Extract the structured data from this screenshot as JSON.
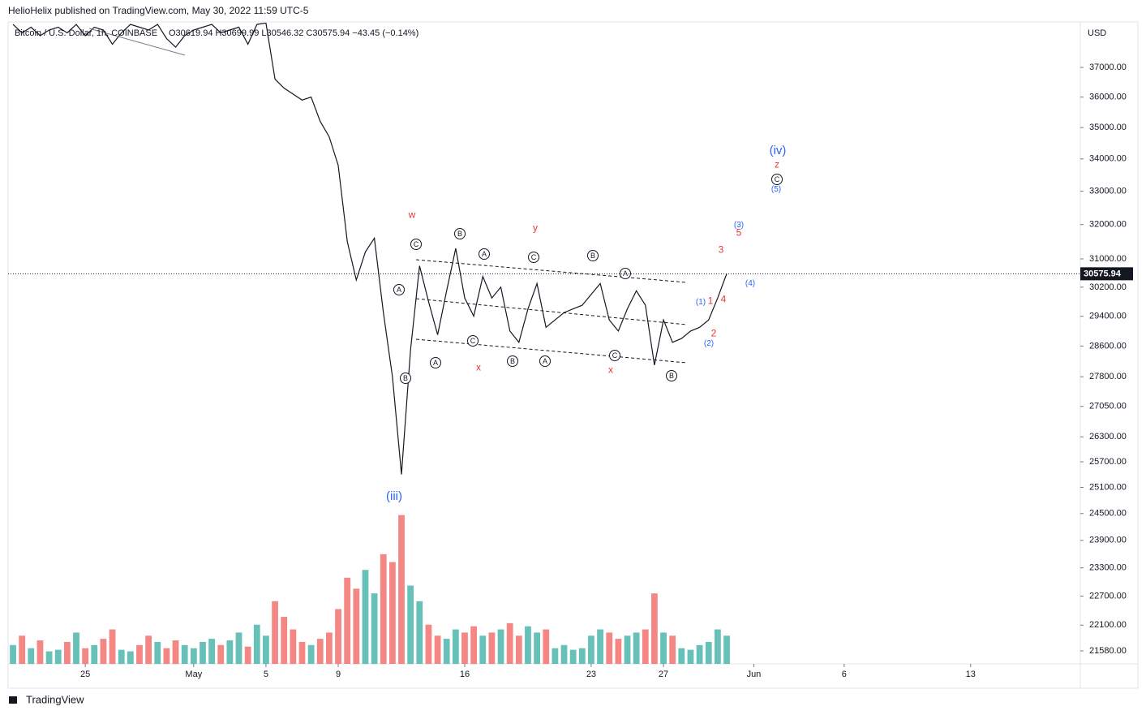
{
  "header": {
    "publisher": "HelioHelix published on TradingView.com, May 30, 2022 11:59 UTC-5",
    "brand": "TradingView"
  },
  "chart_data": {
    "type": "line",
    "title": "Bitcoin / U.S. Dollar, 1h, COINBASE",
    "ohlc": "O30619.94 H30699.99 L30546.32 C30575.94 −43.45 (−0.14%)",
    "currency": "USD",
    "color": "#131722",
    "log_scale": true,
    "x": [
      "2022-04-21 00:00",
      "2022-04-21 12:00",
      "2022-04-22 00:00",
      "2022-04-22 12:00",
      "2022-04-23 00:00",
      "2022-04-23 12:00",
      "2022-04-24 00:00",
      "2022-04-24 12:00",
      "2022-04-25 00:00",
      "2022-04-25 12:00",
      "2022-04-26 00:00",
      "2022-04-26 12:00",
      "2022-04-27 00:00",
      "2022-04-27 12:00",
      "2022-04-28 00:00",
      "2022-04-28 12:00",
      "2022-04-29 00:00",
      "2022-04-29 12:00",
      "2022-04-30 00:00",
      "2022-04-30 12:00",
      "2022-05-01 00:00",
      "2022-05-01 12:00",
      "2022-05-02 00:00",
      "2022-05-02 12:00",
      "2022-05-03 00:00",
      "2022-05-03 12:00",
      "2022-05-04 00:00",
      "2022-05-04 12:00",
      "2022-05-05 00:00",
      "2022-05-05 12:00",
      "2022-05-06 00:00",
      "2022-05-06 12:00",
      "2022-05-07 00:00",
      "2022-05-07 12:00",
      "2022-05-08 00:00",
      "2022-05-08 12:00",
      "2022-05-09 00:00",
      "2022-05-09 12:00",
      "2022-05-10 00:00",
      "2022-05-10 12:00",
      "2022-05-11 00:00",
      "2022-05-11 12:00",
      "2022-05-12 00:00",
      "2022-05-12 12:00",
      "2022-05-13 00:00",
      "2022-05-13 12:00",
      "2022-05-14 00:00",
      "2022-05-14 12:00",
      "2022-05-15 00:00",
      "2022-05-15 12:00",
      "2022-05-16 00:00",
      "2022-05-16 12:00",
      "2022-05-17 00:00",
      "2022-05-17 12:00",
      "2022-05-18 00:00",
      "2022-05-18 12:00",
      "2022-05-19 00:00",
      "2022-05-19 12:00",
      "2022-05-20 00:00",
      "2022-05-20 12:00",
      "2022-05-21 00:00",
      "2022-05-21 12:00",
      "2022-05-22 00:00",
      "2022-05-22 12:00",
      "2022-05-23 00:00",
      "2022-05-23 12:00",
      "2022-05-24 00:00",
      "2022-05-24 12:00",
      "2022-05-25 00:00",
      "2022-05-25 12:00",
      "2022-05-26 00:00",
      "2022-05-26 12:00",
      "2022-05-27 00:00",
      "2022-05-27 12:00",
      "2022-05-28 00:00",
      "2022-05-28 12:00",
      "2022-05-29 00:00",
      "2022-05-29 12:00",
      "2022-05-30 00:00",
      "2022-05-30 12:00"
    ],
    "values": [
      38500,
      38200,
      38400,
      38100,
      38300,
      38400,
      38200,
      38500,
      38100,
      38400,
      38300,
      37800,
      38200,
      38500,
      38400,
      38300,
      38500,
      38000,
      37700,
      38100,
      38300,
      38400,
      38500,
      38200,
      38300,
      38400,
      37800,
      38500,
      38550,
      36600,
      36300,
      36100,
      35900,
      36000,
      35200,
      34700,
      33800,
      31500,
      30400,
      31200,
      31600,
      29500,
      27800,
      25400,
      28500,
      30800,
      29800,
      28900,
      30100,
      31300,
      29900,
      29400,
      30500,
      29900,
      30200,
      29000,
      28700,
      29600,
      30300,
      29100,
      29300,
      29500,
      29600,
      29700,
      30000,
      30300,
      29300,
      29000,
      29600,
      30100,
      29700,
      28100,
      29300,
      28700,
      28800,
      29000,
      29100,
      29300,
      29900,
      30575.94
    ],
    "volume": {
      "values": [
        12,
        18,
        10,
        15,
        8,
        9,
        14,
        20,
        10,
        12,
        16,
        22,
        9,
        8,
        12,
        18,
        14,
        10,
        15,
        12,
        10,
        14,
        16,
        12,
        15,
        20,
        11,
        25,
        18,
        40,
        30,
        22,
        14,
        12,
        16,
        20,
        35,
        55,
        48,
        60,
        45,
        70,
        65,
        95,
        50,
        40,
        25,
        18,
        16,
        22,
        20,
        24,
        18,
        20,
        22,
        26,
        18,
        24,
        20,
        22,
        10,
        12,
        9,
        10,
        18,
        22,
        20,
        16,
        18,
        20,
        22,
        45,
        20,
        18,
        10,
        9,
        12,
        14,
        22,
        18
      ],
      "ylim": [
        0,
        100
      ],
      "up_color": "#26a69a",
      "down_color": "#ef5350"
    },
    "xlim": [
      "2022-04-20 17:30",
      "2022-06-19 01:40"
    ],
    "xticks": [
      {
        "value": "2022-04-25 00:00",
        "label": "25"
      },
      {
        "value": "2022-05-01 00:00",
        "label": "May"
      },
      {
        "value": "2022-05-05 00:00",
        "label": "5"
      },
      {
        "value": "2022-05-09 00:00",
        "label": "9"
      },
      {
        "value": "2022-05-16 00:00",
        "label": "16"
      },
      {
        "value": "2022-05-23 00:00",
        "label": "23"
      },
      {
        "value": "2022-05-27 00:00",
        "label": "27"
      },
      {
        "value": "2022-06-01 00:00",
        "label": "Jun"
      },
      {
        "value": "2022-06-06 00:00",
        "label": "6"
      },
      {
        "value": "2022-06-13 00:00",
        "label": "13"
      }
    ],
    "ylim": [
      21322,
      38560
    ],
    "yticks": [
      {
        "value": 37000,
        "label": "37000.00"
      },
      {
        "value": 36000,
        "label": "36000.00"
      },
      {
        "value": 35000,
        "label": "35000.00"
      },
      {
        "value": 34000,
        "label": "34000.00"
      },
      {
        "value": 33000,
        "label": "33000.00"
      },
      {
        "value": 32000,
        "label": "32000.00"
      },
      {
        "value": 31000,
        "label": "31000.00"
      },
      {
        "value": 30200,
        "label": "30200.00"
      },
      {
        "value": 29400,
        "label": "29400.00"
      },
      {
        "value": 28600,
        "label": "28600.00"
      },
      {
        "value": 27800,
        "label": "27800.00"
      },
      {
        "value": 27050,
        "label": "27050.00"
      },
      {
        "value": 26300,
        "label": "26300.00"
      },
      {
        "value": 25700,
        "label": "25700.00"
      },
      {
        "value": 25100,
        "label": "25100.00"
      },
      {
        "value": 24500,
        "label": "24500.00"
      },
      {
        "value": 23900,
        "label": "23900.00"
      },
      {
        "value": 23300,
        "label": "23300.00"
      },
      {
        "value": 22700,
        "label": "22700.00"
      },
      {
        "value": 22100,
        "label": "22100.00"
      },
      {
        "value": 21580,
        "label": "21580.00"
      }
    ],
    "annotations": [
      {
        "text": "w",
        "color": "#e53935"
      },
      {
        "text": "y",
        "color": "#e53935"
      },
      {
        "text": "x",
        "color": "#e53935"
      },
      {
        "text": "x",
        "color": "#e53935"
      },
      {
        "text": "z",
        "color": "#e53935"
      },
      {
        "text": "3",
        "color": "#e53935"
      },
      {
        "text": "5",
        "color": "#e53935"
      },
      {
        "text": "1",
        "color": "#e53935"
      },
      {
        "text": "4",
        "color": "#e53935"
      },
      {
        "text": "2",
        "color": "#e53935"
      },
      {
        "text": "(iv)",
        "color": "#2962ff"
      },
      {
        "text": "(iii)",
        "color": "#2962ff"
      },
      {
        "text": "(5)",
        "color": "#2962ff"
      },
      {
        "text": "(3)",
        "color": "#2962ff"
      },
      {
        "text": "(4)",
        "color": "#2962ff"
      },
      {
        "text": "(1)",
        "color": "#2962ff"
      },
      {
        "text": "(2)",
        "color": "#2962ff"
      },
      {
        "text": "C",
        "color": "#131722",
        "circled": true
      },
      {
        "text": "B",
        "color": "#131722",
        "circled": true
      },
      {
        "text": "A",
        "color": "#131722",
        "circled": true
      },
      {
        "text": "C",
        "color": "#131722",
        "circled": true
      },
      {
        "text": "B",
        "color": "#131722",
        "circled": true
      },
      {
        "text": "A",
        "color": "#131722",
        "circled": true
      },
      {
        "text": "A",
        "color": "#131722",
        "circled": true
      },
      {
        "text": "B",
        "color": "#131722",
        "circled": true
      },
      {
        "text": "A",
        "color": "#131722",
        "circled": true
      },
      {
        "text": "C",
        "color": "#131722",
        "circled": true
      },
      {
        "text": "B",
        "color": "#131722",
        "circled": true
      },
      {
        "text": "A",
        "color": "#131722",
        "circled": true
      },
      {
        "text": "C",
        "color": "#131722",
        "circled": true
      },
      {
        "text": "B",
        "color": "#131722",
        "circled": true
      },
      {
        "text": "C",
        "color": "#131722",
        "circled": true
      }
    ]
  }
}
